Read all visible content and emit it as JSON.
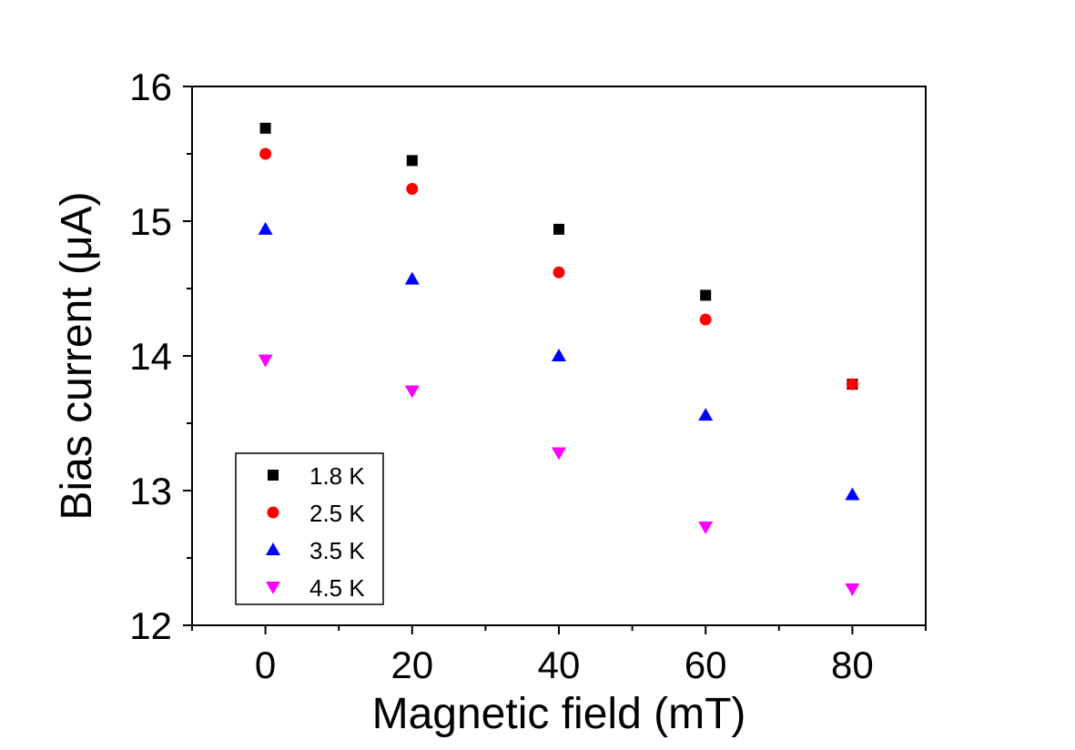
{
  "chart_data": {
    "type": "scatter",
    "title": "",
    "xlabel": "Magnetic field (mT)",
    "ylabel": "Bias current (μA)",
    "xlim": [
      -10,
      90
    ],
    "ylim": [
      12,
      16
    ],
    "xticks": [
      0,
      20,
      40,
      60,
      80
    ],
    "yticks": [
      12,
      13,
      14,
      15,
      16
    ],
    "xtick_labels": [
      "0",
      "20",
      "40",
      "60",
      "80"
    ],
    "ytick_labels": [
      "12",
      "13",
      "14",
      "15",
      "16"
    ],
    "x": [
      0,
      20,
      40,
      60,
      80
    ],
    "legend_position": "bottom-left",
    "series": [
      {
        "name": "1.8 K",
        "marker": "square",
        "color": "#000000",
        "values": [
          15.69,
          15.45,
          14.94,
          14.45,
          13.79
        ]
      },
      {
        "name": "2.5 K",
        "marker": "circle",
        "color": "#ff0000",
        "values": [
          15.5,
          15.24,
          14.62,
          14.27,
          13.79
        ]
      },
      {
        "name": "3.5 K",
        "marker": "triangle-up",
        "color": "#0000ff",
        "values": [
          14.94,
          14.57,
          14.0,
          13.56,
          12.97
        ]
      },
      {
        "name": "4.5 K",
        "marker": "triangle-down",
        "color": "#ff00ff",
        "values": [
          13.97,
          13.74,
          13.28,
          12.73,
          12.27
        ]
      }
    ]
  }
}
